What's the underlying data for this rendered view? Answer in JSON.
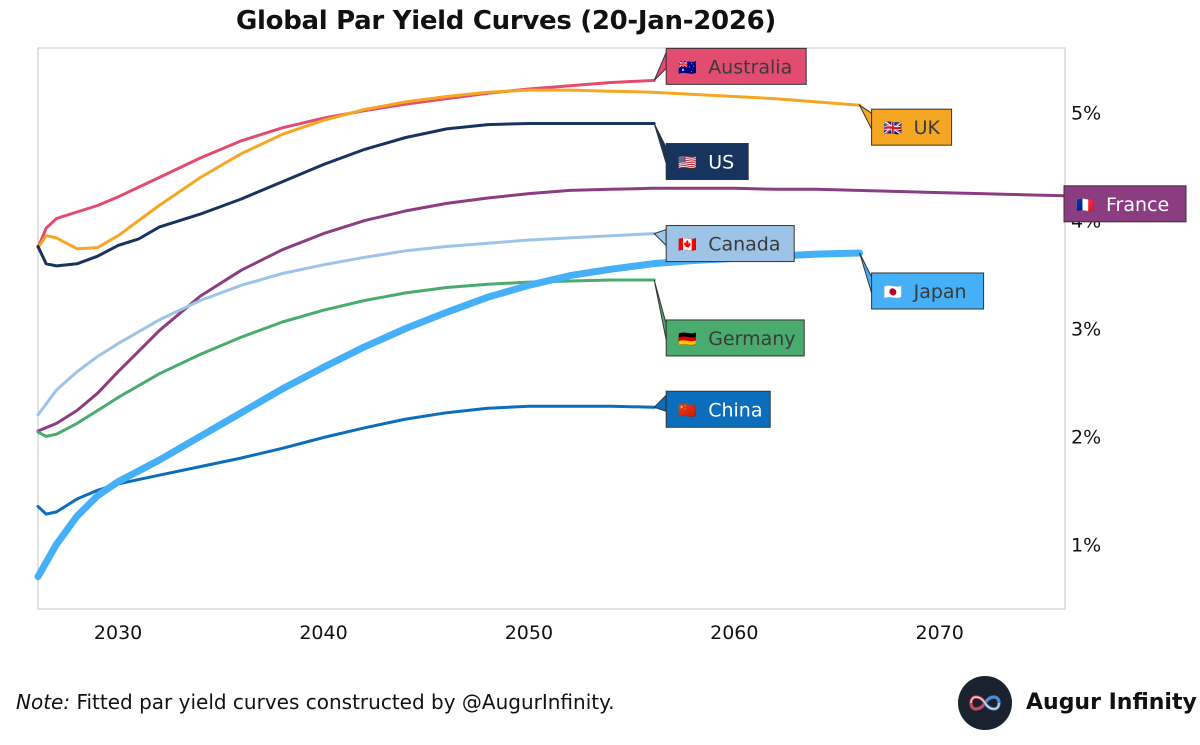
{
  "brand": {
    "name": "Augur Infinity",
    "logo_icon": "infinity-icon"
  },
  "footnote": {
    "prefix": "Note:",
    "text": " Fitted par yield curves constructed by @AugurInfinity."
  },
  "chart_data": {
    "type": "line",
    "title": "Global Par Yield Curves (20-Jan-2026)",
    "xlabel": "",
    "ylabel": "",
    "xlim": [
      2026.1,
      2076.1
    ],
    "ylim": [
      0.4,
      5.6
    ],
    "xticks": [
      2030,
      2040,
      2050,
      2060,
      2070
    ],
    "yticks": [
      1,
      2,
      3,
      4,
      5
    ],
    "ytick_labels": [
      "1%",
      "2%",
      "3%",
      "4%",
      "5%"
    ],
    "yaxis_side": "right",
    "grid": false,
    "series": [
      {
        "name": "Australia",
        "flag": "🇦🇺",
        "color": "#e14c70",
        "label_text_color": "#3a3a3a",
        "width": 3,
        "x": [
          2026.1,
          2026.5,
          2027,
          2028,
          2029,
          2030,
          2032,
          2034,
          2036,
          2038,
          2040,
          2042,
          2044,
          2046,
          2048,
          2050,
          2052,
          2054,
          2056.1
        ],
        "y": [
          3.75,
          3.93,
          4.02,
          4.08,
          4.14,
          4.22,
          4.4,
          4.58,
          4.74,
          4.86,
          4.95,
          5.02,
          5.08,
          5.13,
          5.18,
          5.22,
          5.25,
          5.28,
          5.3
        ]
      },
      {
        "name": "UK",
        "flag": "🇬🇧",
        "color": "#f5a623",
        "label_text_color": "#3a3a3a",
        "width": 3,
        "x": [
          2026.1,
          2026.5,
          2027,
          2028,
          2029,
          2030,
          2032,
          2034,
          2036,
          2038,
          2040,
          2042,
          2044,
          2046,
          2048,
          2050,
          2052,
          2054,
          2056,
          2058,
          2060,
          2062,
          2064,
          2066.1
        ],
        "y": [
          3.75,
          3.86,
          3.84,
          3.74,
          3.75,
          3.86,
          4.14,
          4.4,
          4.62,
          4.8,
          4.93,
          5.03,
          5.1,
          5.15,
          5.19,
          5.21,
          5.21,
          5.2,
          5.19,
          5.17,
          5.15,
          5.13,
          5.1,
          5.07
        ]
      },
      {
        "name": "US",
        "flag": "🇺🇸",
        "color": "#17345f",
        "label_text_color": "#ffffff",
        "width": 3,
        "x": [
          2026.1,
          2026.5,
          2027,
          2028,
          2029,
          2030,
          2031,
          2032,
          2034,
          2036,
          2038,
          2040,
          2042,
          2044,
          2046,
          2048,
          2050,
          2052,
          2054,
          2056.1
        ],
        "y": [
          3.76,
          3.6,
          3.58,
          3.6,
          3.67,
          3.77,
          3.83,
          3.94,
          4.06,
          4.2,
          4.36,
          4.52,
          4.66,
          4.77,
          4.85,
          4.89,
          4.9,
          4.9,
          4.9,
          4.9
        ]
      },
      {
        "name": "France",
        "flag": "🇫🇷",
        "color": "#8c3d82",
        "label_text_color": "#ffffff",
        "width": 3,
        "x": [
          2026.1,
          2027,
          2028,
          2029,
          2030,
          2032,
          2034,
          2036,
          2038,
          2040,
          2042,
          2044,
          2046,
          2048,
          2050,
          2052,
          2054,
          2056,
          2058,
          2060,
          2062,
          2064,
          2066,
          2068,
          2070,
          2072,
          2074,
          2076.1
        ],
        "y": [
          2.05,
          2.12,
          2.24,
          2.4,
          2.6,
          2.98,
          3.3,
          3.54,
          3.73,
          3.88,
          4.0,
          4.09,
          4.16,
          4.21,
          4.25,
          4.28,
          4.29,
          4.3,
          4.3,
          4.3,
          4.29,
          4.29,
          4.28,
          4.27,
          4.26,
          4.25,
          4.24,
          4.23
        ]
      },
      {
        "name": "Canada",
        "flag": "🇨🇦",
        "color": "#9dc3e6",
        "label_text_color": "#3a3a3a",
        "width": 3,
        "x": [
          2026.1,
          2027,
          2028,
          2029,
          2030,
          2032,
          2034,
          2036,
          2038,
          2040,
          2042,
          2044,
          2046,
          2048,
          2050,
          2052,
          2054,
          2056.1
        ],
        "y": [
          2.2,
          2.43,
          2.6,
          2.74,
          2.86,
          3.08,
          3.26,
          3.4,
          3.51,
          3.59,
          3.66,
          3.72,
          3.76,
          3.79,
          3.82,
          3.84,
          3.86,
          3.88
        ]
      },
      {
        "name": "Japan",
        "flag": "🇯🇵",
        "color": "#45b0f7",
        "label_text_color": "#3a3a3a",
        "width": 7,
        "x": [
          2026.1,
          2027,
          2028,
          2029,
          2030,
          2032,
          2034,
          2036,
          2038,
          2040,
          2042,
          2044,
          2046,
          2048,
          2050,
          2052,
          2054,
          2056,
          2058,
          2060,
          2062,
          2064,
          2066.1
        ],
        "y": [
          0.7,
          1.0,
          1.26,
          1.45,
          1.58,
          1.78,
          2.0,
          2.22,
          2.44,
          2.64,
          2.83,
          3.0,
          3.15,
          3.29,
          3.4,
          3.49,
          3.55,
          3.6,
          3.63,
          3.65,
          3.67,
          3.69,
          3.7
        ]
      },
      {
        "name": "Germany",
        "flag": "🇩🇪",
        "color": "#4aab6e",
        "label_text_color": "#3a3a3a",
        "width": 3,
        "x": [
          2026.1,
          2026.5,
          2027,
          2028,
          2029,
          2030,
          2032,
          2034,
          2036,
          2038,
          2040,
          2042,
          2044,
          2046,
          2048,
          2050,
          2052,
          2054,
          2056.1
        ],
        "y": [
          2.04,
          2.0,
          2.02,
          2.12,
          2.24,
          2.36,
          2.58,
          2.76,
          2.92,
          3.06,
          3.17,
          3.26,
          3.33,
          3.38,
          3.41,
          3.43,
          3.44,
          3.45,
          3.45
        ]
      },
      {
        "name": "China",
        "flag": "🇨🇳",
        "color": "#0b6ebd",
        "label_text_color": "#ffffff",
        "width": 3,
        "x": [
          2026.1,
          2026.5,
          2027,
          2028,
          2029,
          2030,
          2032,
          2034,
          2036,
          2038,
          2040,
          2042,
          2044,
          2046,
          2048,
          2050,
          2052,
          2054,
          2056.1
        ],
        "y": [
          1.35,
          1.28,
          1.3,
          1.42,
          1.5,
          1.56,
          1.64,
          1.72,
          1.8,
          1.89,
          1.99,
          2.08,
          2.16,
          2.22,
          2.26,
          2.28,
          2.28,
          2.28,
          2.27
        ]
      }
    ]
  }
}
